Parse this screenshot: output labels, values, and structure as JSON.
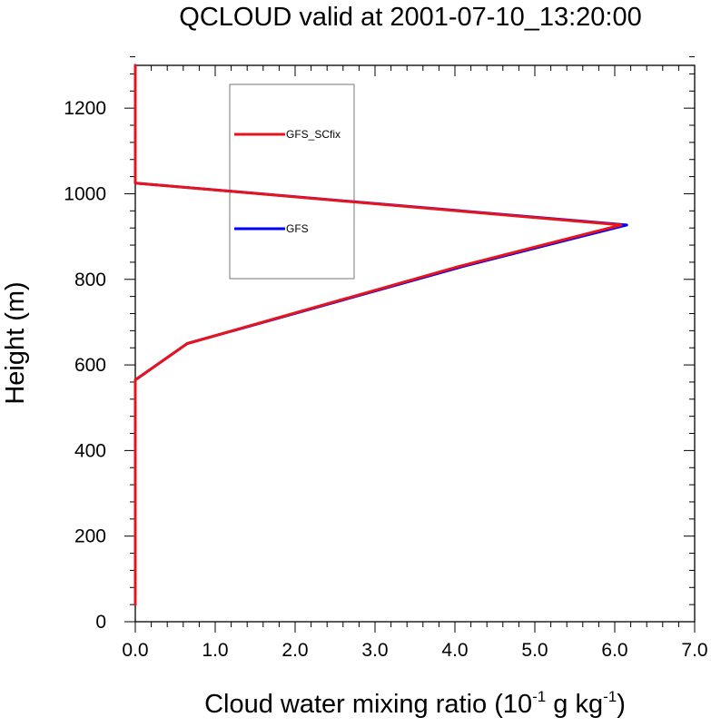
{
  "chart_data": {
    "type": "line",
    "title": "QCLOUD valid at 2001-07-10_13:20:00",
    "xlabel": {
      "base": "Cloud water mixing ratio (10",
      "exp1": "-1",
      "mid": " g kg",
      "exp2": "-1",
      "end": ")"
    },
    "ylabel": "Height (m)",
    "xlim": [
      0,
      7
    ],
    "ylim": [
      0,
      1300
    ],
    "xticks": [
      0,
      1,
      2,
      3,
      4,
      5,
      6,
      7
    ],
    "xtick_labels": [
      "0.0",
      "1.0",
      "2.0",
      "3.0",
      "4.0",
      "5.0",
      "6.0",
      "7.0"
    ],
    "yticks": [
      0,
      200,
      400,
      600,
      800,
      1000,
      1200
    ],
    "ytick_labels": [
      "0",
      "200",
      "400",
      "600",
      "800",
      "1000",
      "1200"
    ],
    "x_minor_step": 0.2,
    "y_minor_step": 40,
    "grid": false,
    "legend_position": "top-left-inside",
    "series": [
      {
        "name": "GFS",
        "color": "#0000ff",
        "x": [
          0.0,
          0.0,
          0.0,
          0.65,
          4.1,
          6.15,
          0.0,
          0.0
        ],
        "y": [
          40,
          400,
          565,
          650,
          830,
          927,
          1025,
          1300
        ]
      },
      {
        "name": "GFS_SCfix",
        "color": "#e8141b",
        "x": [
          0.0,
          0.0,
          0.0,
          0.65,
          4.05,
          6.08,
          0.0,
          0.0
        ],
        "y": [
          40,
          400,
          565,
          650,
          830,
          927,
          1025,
          1300
        ]
      }
    ],
    "legend": [
      {
        "name": "GFS_SCfix",
        "color": "#e8141b"
      },
      {
        "name": "GFS",
        "color": "#0000ff"
      }
    ]
  }
}
